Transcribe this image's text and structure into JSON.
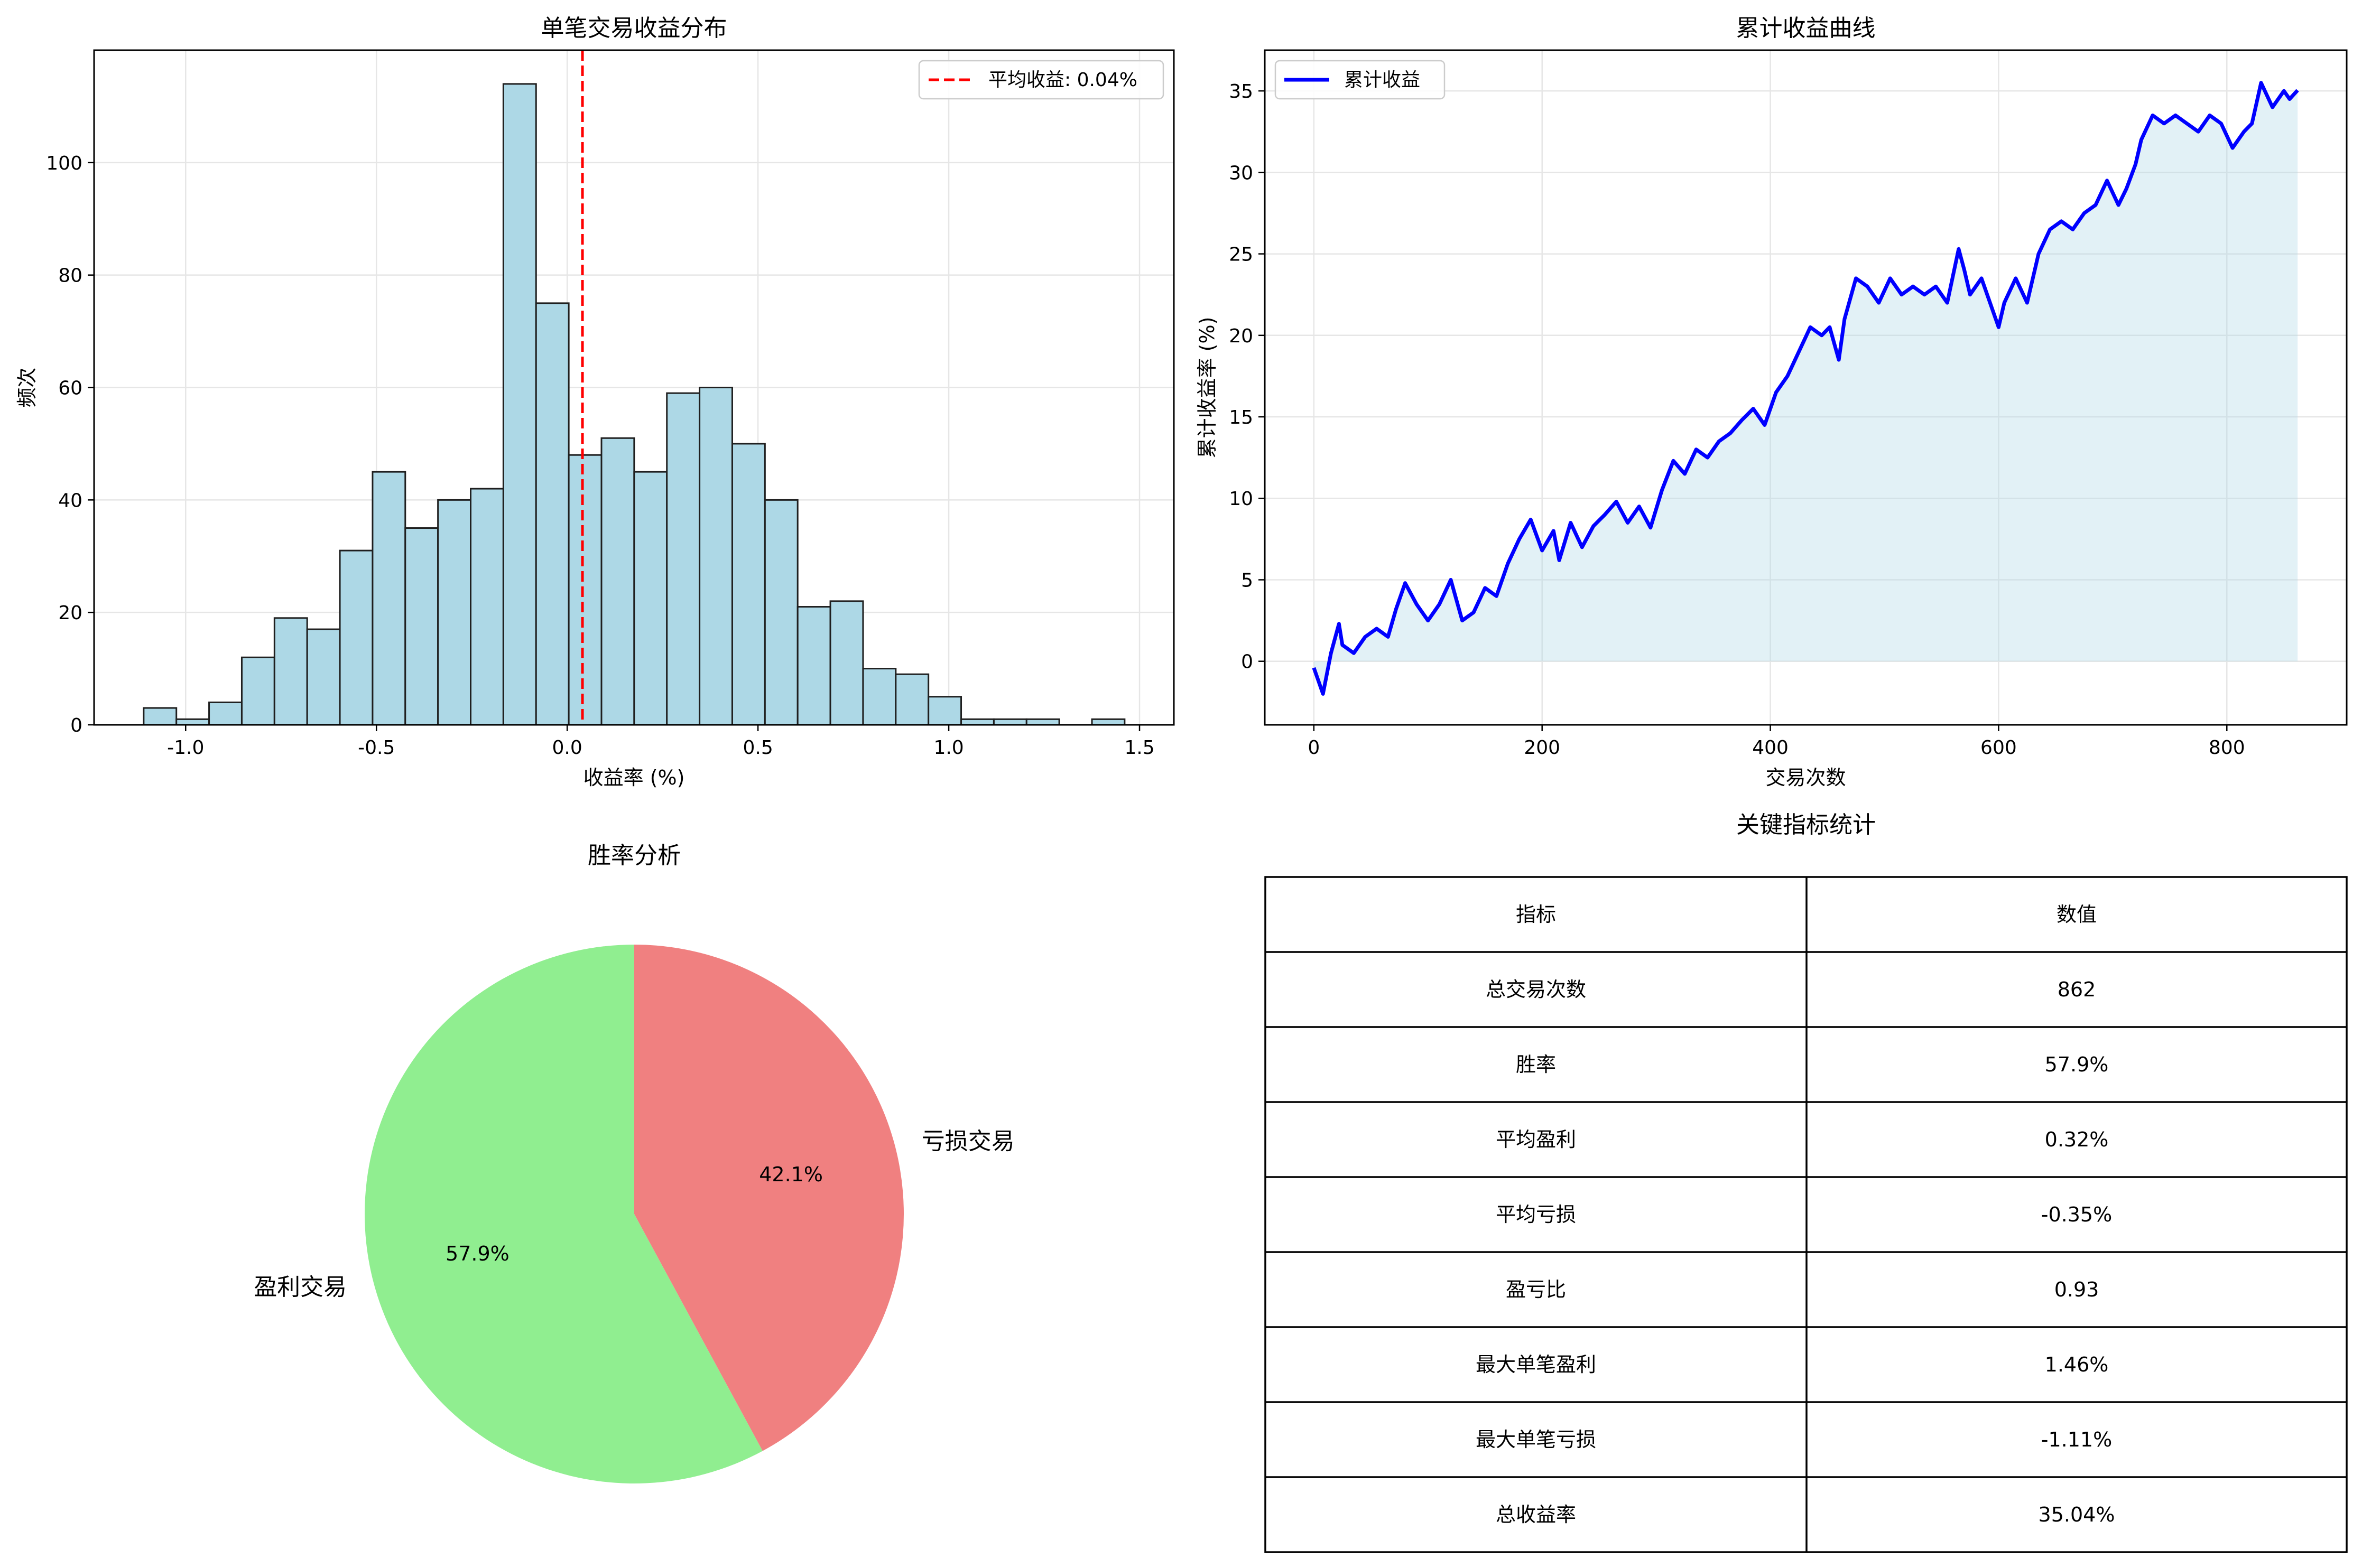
{
  "colors": {
    "hist_bar": "#add8e6",
    "mean_line": "#ff0000",
    "cum_line": "#0000ff",
    "cum_fill": "#add8e6",
    "win": "#90ee90",
    "loss": "#f08080",
    "grid": "#e6e6e6"
  },
  "chart_data": [
    {
      "type": "bar",
      "subtype": "histogram",
      "title": "单笔交易收益分布",
      "xlabel": "收益率 (%)",
      "ylabel": "频次",
      "xlim": [
        -1.24,
        1.59
      ],
      "ylim": [
        0,
        120
      ],
      "xticks": [
        "-1.0",
        "-0.5",
        "0.0",
        "0.5",
        "1.0",
        "1.5"
      ],
      "xtick_values": [
        -1.0,
        -0.5,
        0.0,
        0.5,
        1.0,
        1.5
      ],
      "yticks": [
        "0",
        "20",
        "40",
        "60",
        "80",
        "100"
      ],
      "ytick_values": [
        0,
        20,
        40,
        60,
        80,
        100
      ],
      "grid": true,
      "bins_start": -1.11,
      "bin_width": 0.0857,
      "values": [
        3,
        1,
        4,
        12,
        19,
        17,
        31,
        45,
        35,
        40,
        42,
        114,
        75,
        48,
        51,
        45,
        59,
        60,
        50,
        40,
        21,
        22,
        10,
        9,
        5,
        1,
        1,
        1,
        0,
        1
      ],
      "mean_line": {
        "x": 0.04,
        "label": "平均收益: 0.04%"
      },
      "legend_position": "upper right"
    },
    {
      "type": "area",
      "title": "累计收益曲线",
      "xlabel": "交易次数",
      "ylabel": "累计收益率 (%)",
      "xlim": [
        -43,
        905
      ],
      "ylim": [
        -3.9,
        37.5
      ],
      "xticks": [
        "0",
        "200",
        "400",
        "600",
        "800"
      ],
      "xtick_values": [
        0,
        200,
        400,
        600,
        800
      ],
      "yticks": [
        "0",
        "5",
        "10",
        "15",
        "20",
        "25",
        "30",
        "35"
      ],
      "ytick_values": [
        0,
        5,
        10,
        15,
        20,
        25,
        30,
        35
      ],
      "grid": true,
      "series": [
        {
          "name": "累计收益",
          "x": [
            0,
            8,
            15,
            22,
            25,
            35,
            45,
            55,
            65,
            72,
            80,
            90,
            100,
            110,
            120,
            130,
            140,
            150,
            160,
            170,
            180,
            190,
            200,
            210,
            215,
            225,
            235,
            245,
            255,
            265,
            275,
            285,
            295,
            305,
            315,
            325,
            335,
            345,
            355,
            365,
            375,
            385,
            395,
            405,
            415,
            425,
            435,
            445,
            452,
            460,
            465,
            475,
            485,
            495,
            505,
            515,
            525,
            535,
            545,
            555,
            565,
            570,
            575,
            585,
            595,
            600,
            605,
            615,
            625,
            635,
            645,
            655,
            665,
            675,
            685,
            695,
            705,
            712,
            720,
            725,
            735,
            745,
            755,
            765,
            775,
            785,
            795,
            805,
            815,
            822,
            830,
            840,
            850,
            855,
            862
          ],
          "y": [
            -0.4,
            -2.0,
            0.5,
            2.3,
            1.0,
            0.5,
            1.5,
            2.0,
            1.5,
            3.2,
            4.8,
            3.5,
            2.5,
            3.5,
            5.0,
            2.5,
            3.0,
            4.5,
            4.0,
            6.0,
            7.5,
            8.7,
            6.8,
            8.0,
            6.2,
            8.5,
            7.0,
            8.3,
            9.0,
            9.8,
            8.5,
            9.5,
            8.2,
            10.5,
            12.3,
            11.5,
            13.0,
            12.5,
            13.5,
            14.0,
            14.8,
            15.5,
            14.5,
            16.5,
            17.5,
            19.0,
            20.5,
            20.0,
            20.5,
            18.5,
            21.0,
            23.5,
            23.0,
            22.0,
            23.5,
            22.5,
            23.0,
            22.5,
            23.0,
            22.0,
            25.3,
            24.0,
            22.5,
            23.5,
            21.5,
            20.5,
            22.0,
            23.5,
            22.0,
            25.0,
            26.5,
            27.0,
            26.5,
            27.5,
            28.0,
            29.5,
            28.0,
            29.0,
            30.5,
            32.0,
            33.5,
            33.0,
            33.5,
            33.0,
            32.5,
            33.5,
            33.0,
            31.5,
            32.5,
            33.0,
            35.5,
            34.0,
            35.0,
            34.5,
            35.04
          ]
        }
      ],
      "legend_position": "upper left"
    },
    {
      "type": "pie",
      "title": "胜率分析",
      "labels": [
        "盈利交易",
        "亏损交易"
      ],
      "values": [
        57.9,
        42.1
      ],
      "autopct": [
        "57.9%",
        "42.1%"
      ],
      "startangle": 90,
      "counterclock": false
    },
    {
      "type": "table",
      "title": "关键指标统计",
      "columns": [
        "指标",
        "数值"
      ],
      "rows": [
        [
          "总交易次数",
          "862"
        ],
        [
          "胜率",
          "57.9%"
        ],
        [
          "平均盈利",
          "0.32%"
        ],
        [
          "平均亏损",
          "-0.35%"
        ],
        [
          "盈亏比",
          "0.93"
        ],
        [
          "最大单笔盈利",
          "1.46%"
        ],
        [
          "最大单笔亏损",
          "-1.11%"
        ],
        [
          "总收益率",
          "35.04%"
        ]
      ]
    }
  ]
}
